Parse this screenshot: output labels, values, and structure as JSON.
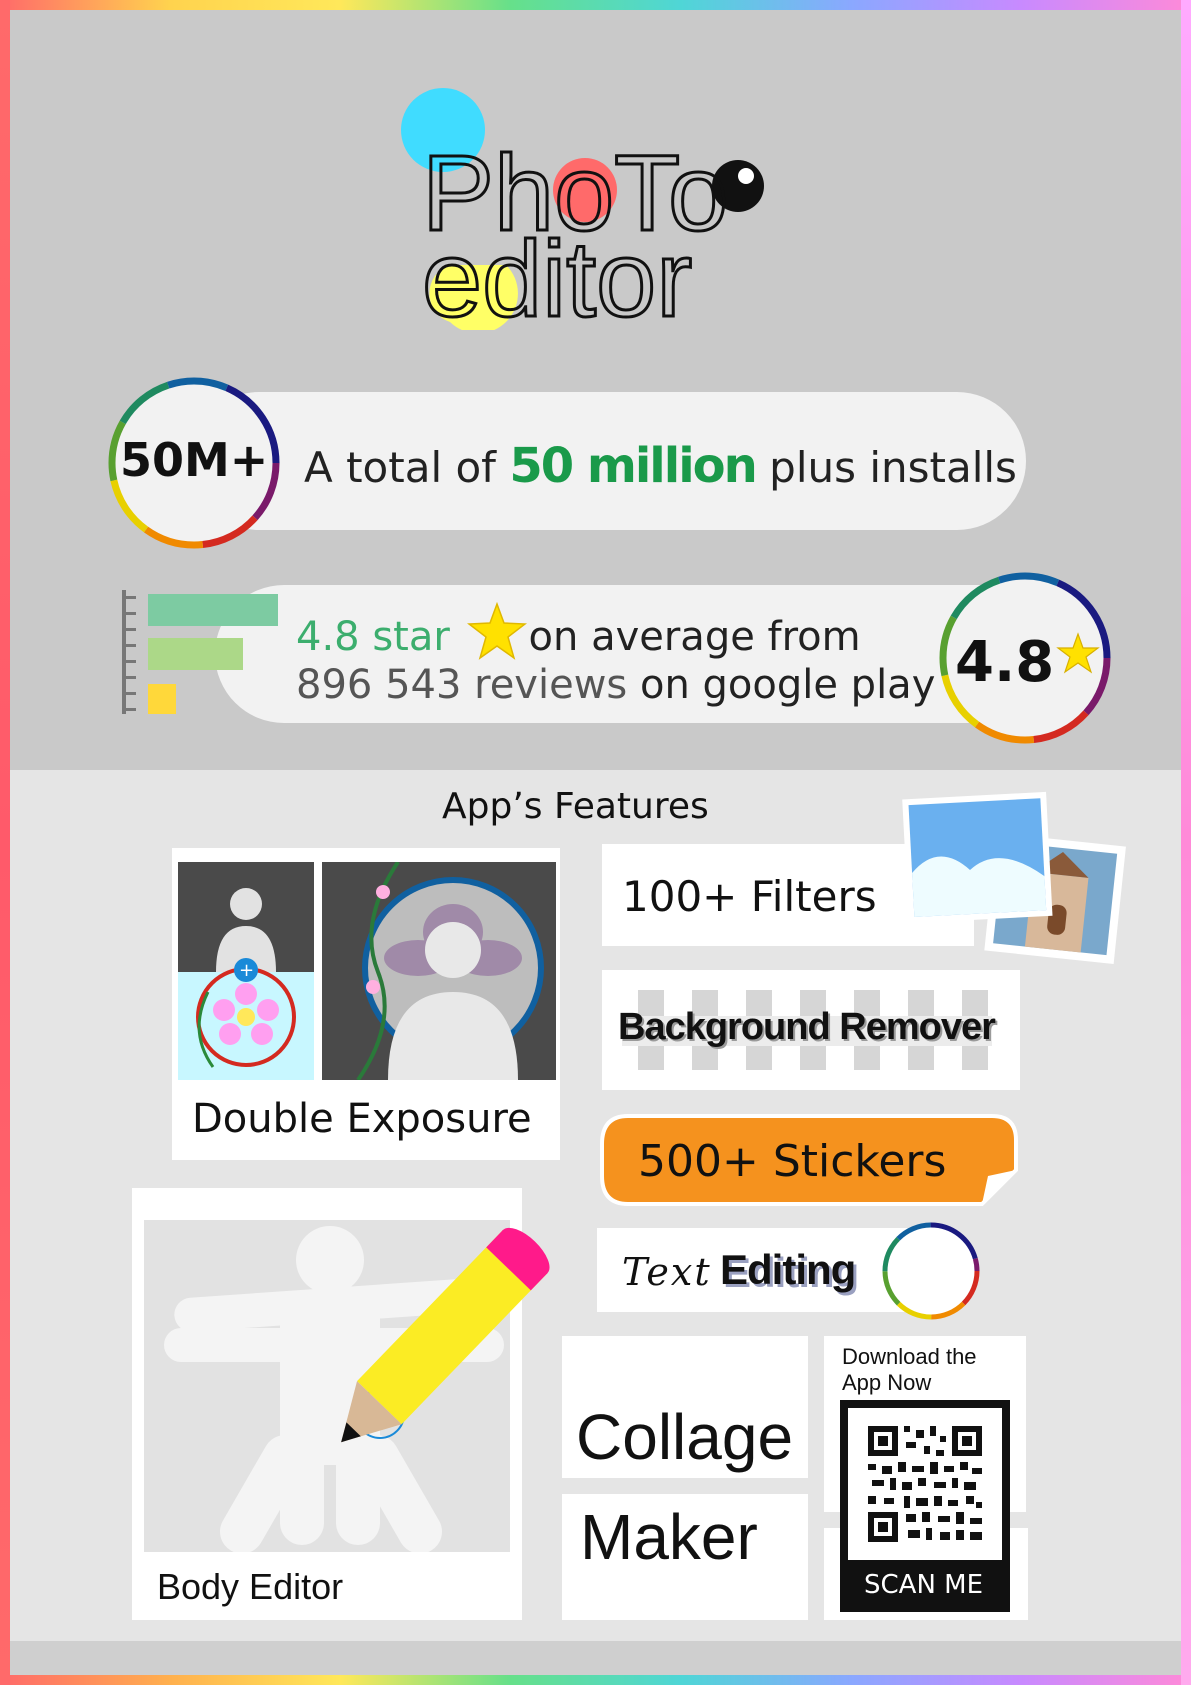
{
  "brand": {
    "logo_line1": "PhoTo",
    "logo_line2": "editor"
  },
  "installs": {
    "badge": "50M+",
    "text_before": "A total of",
    "highlight": "50 million",
    "text_after": "plus installs"
  },
  "rating": {
    "badge": "4.8",
    "line1_highlight": "4.8 star",
    "line1_rest": "on average from",
    "line2_highlight": "896 543 reviews",
    "line2_rest": "on google play"
  },
  "features": {
    "title": "App’s Features",
    "double_exposure": "Double Exposure",
    "filters": "100+ Filters",
    "background_remover": "Background Remover",
    "stickers": "500+ Stickers",
    "text_editing_script": "Text",
    "text_editing_bold": "Editing",
    "body_editor": "Body Editor",
    "collage_line1": "Collage",
    "collage_line2": "Maker"
  },
  "download": {
    "heading_line1": "Download the",
    "heading_line2": "App Now",
    "scan_label": "SCAN ME"
  },
  "colors": {
    "install_green": "#1a9a4a",
    "rating_green": "#3cae6e",
    "sticker_orange": "#f5921e",
    "star_yellow": "#ffe100",
    "accent_cyan": "#40dcff",
    "accent_coral": "#ff6a6a"
  }
}
